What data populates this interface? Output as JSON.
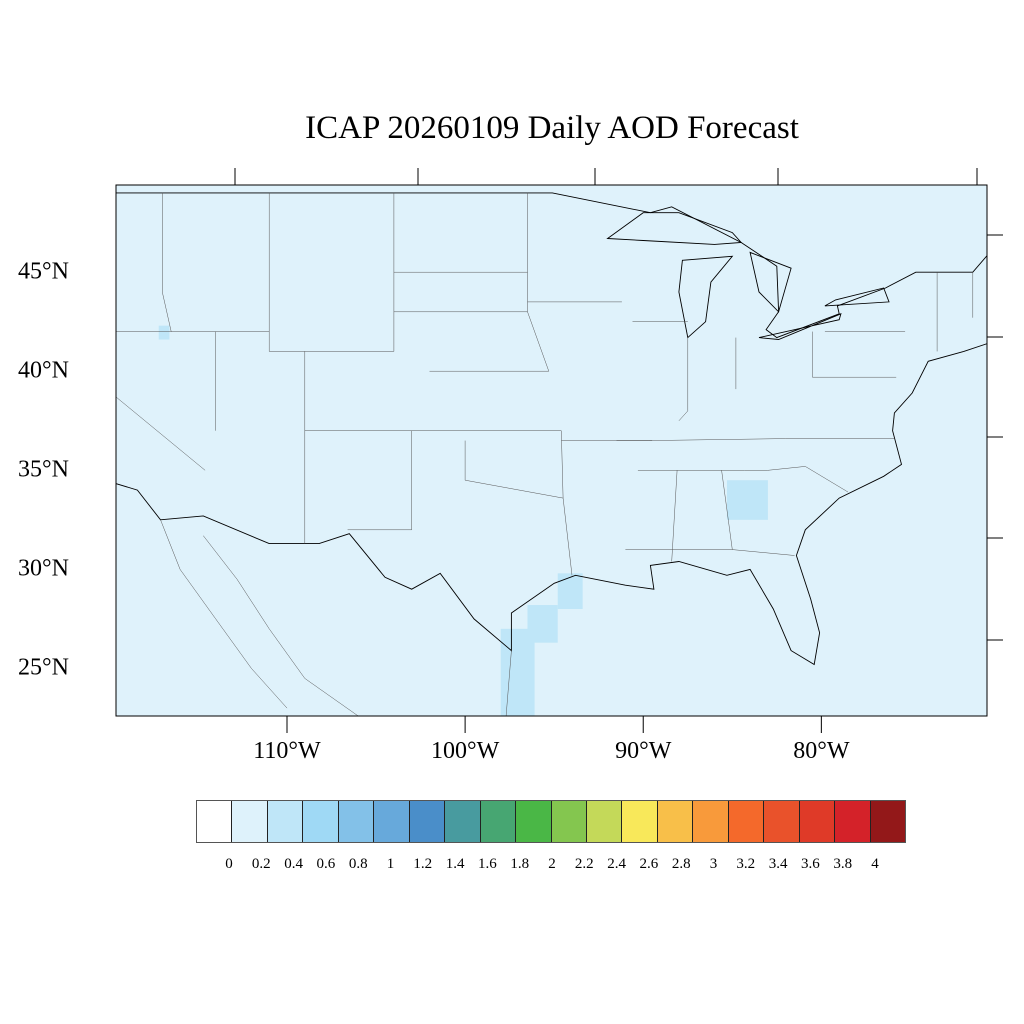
{
  "title": "ICAP 20260109 Daily AOD Forecast",
  "map": {
    "background_color": "#dff2fb",
    "lat_labels": [
      {
        "lat": 45,
        "label": "45°N"
      },
      {
        "lat": 40,
        "label": "40°N"
      },
      {
        "lat": 35,
        "label": "35°N"
      },
      {
        "lat": 30,
        "label": "30°N"
      },
      {
        "lat": 25,
        "label": "25°N"
      }
    ],
    "lon_labels": [
      {
        "lon": -110,
        "label": "110°W"
      },
      {
        "lon": -100,
        "label": "100°W"
      },
      {
        "lon": -90,
        "label": "90°W"
      },
      {
        "lon": -80,
        "label": "80°W"
      }
    ],
    "extent": {
      "lon": [
        -119.6,
        -70.7
      ],
      "lat": [
        22.6,
        49.4
      ]
    },
    "aod_regions": [
      {
        "name": "south-texas-coast",
        "lon": [
          -98,
          -96.1
        ],
        "lat": [
          22.6,
          27
        ],
        "aod": 0.3
      },
      {
        "name": "texas-gulf",
        "lon": [
          -96.5,
          -94.8
        ],
        "lat": [
          26.3,
          28.2
        ],
        "aod": 0.3
      },
      {
        "name": "texas-louisiana",
        "lon": [
          -94.8,
          -93.4
        ],
        "lat": [
          28,
          29.8
        ],
        "aod": 0.3
      },
      {
        "name": "georgia-carolinas",
        "lon": [
          -85.3,
          -83
        ],
        "lat": [
          32.5,
          34.5
        ],
        "aod": 0.3
      },
      {
        "name": "oregon",
        "lon": [
          -117.2,
          -116.6
        ],
        "lat": [
          41.6,
          42.3
        ],
        "aod": 0.3
      }
    ]
  },
  "colorbar": {
    "colors": [
      "#ffffff",
      "#def2fb",
      "#bfe6f8",
      "#9fd9f5",
      "#83c1e8",
      "#67a9db",
      "#4a8ec9",
      "#489b9f",
      "#47a672",
      "#4ab746",
      "#84c64f",
      "#c4d959",
      "#f8e85a",
      "#f8bf49",
      "#f89a3b",
      "#f4692b",
      "#e9522b",
      "#df3a28",
      "#d42229",
      "#bd1b23",
      "#a91b1e",
      "#931819"
    ],
    "labels": [
      "0",
      "0.2",
      "0.4",
      "0.6",
      "0.8",
      "1",
      "1.2",
      "1.4",
      "1.6",
      "1.8",
      "2",
      "2.2",
      "2.4",
      "2.6",
      "2.8",
      "3",
      "3.2",
      "3.4",
      "3.6",
      "3.8",
      "4"
    ]
  }
}
